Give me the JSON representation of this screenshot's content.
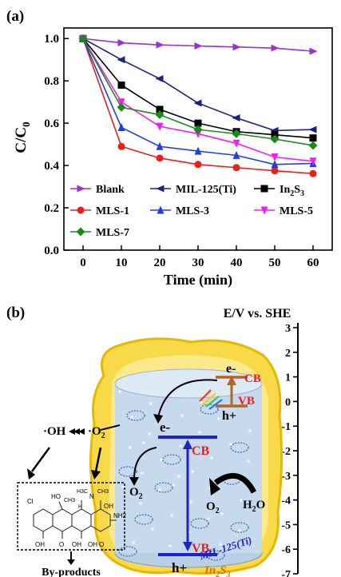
{
  "chart_data": {
    "type": "line",
    "panel_label": "(a)",
    "xlabel": "Time (min)",
    "ylabel": "C/C0",
    "xlim": [
      -5,
      65
    ],
    "ylim": [
      0.0,
      1.05
    ],
    "xticks": [
      0,
      10,
      20,
      30,
      40,
      50,
      60
    ],
    "yticks": [
      0.0,
      0.2,
      0.4,
      0.6,
      0.8,
      1.0
    ],
    "x": [
      0,
      10,
      20,
      30,
      40,
      50,
      60
    ],
    "legend_position": "bottom-inside",
    "series": [
      {
        "name": "Blank",
        "color": "#9b2fd3",
        "marker": "triangle-right",
        "values": [
          1.0,
          0.98,
          0.97,
          0.965,
          0.96,
          0.955,
          0.94
        ]
      },
      {
        "name": "MIL-125(Ti)",
        "color": "#1a237e",
        "marker": "triangle-left",
        "values": [
          1.0,
          0.9,
          0.81,
          0.695,
          0.625,
          0.565,
          0.57
        ]
      },
      {
        "name": "In2S3",
        "color": "#000000",
        "marker": "square",
        "values": [
          1.0,
          0.78,
          0.665,
          0.6,
          0.56,
          0.545,
          0.53
        ]
      },
      {
        "name": "MLS-1",
        "color": "#e8201a",
        "marker": "circle",
        "values": [
          1.0,
          0.49,
          0.435,
          0.405,
          0.39,
          0.375,
          0.362
        ]
      },
      {
        "name": "MLS-3",
        "color": "#1f3fe0",
        "marker": "triangle-up",
        "values": [
          1.0,
          0.58,
          0.49,
          0.468,
          0.448,
          0.405,
          0.41
        ]
      },
      {
        "name": "MLS-5",
        "color": "#f01ff0",
        "marker": "triangle-down",
        "values": [
          1.0,
          0.7,
          0.585,
          0.55,
          0.505,
          0.44,
          0.42
        ]
      },
      {
        "name": "MLS-7",
        "color": "#1a8a1a",
        "marker": "diamond",
        "values": [
          1.0,
          0.675,
          0.64,
          0.57,
          0.55,
          0.525,
          0.495
        ]
      }
    ]
  },
  "panel_b": {
    "label": "(b)",
    "axis_title": "E/V vs. SHE",
    "ticks": [
      3,
      2,
      1,
      0,
      -1,
      -2,
      -3,
      -4,
      -5,
      -6,
      -7
    ],
    "in2s3": {
      "cb": "CB",
      "vb": "VB",
      "electron": "e-",
      "hole": "h+",
      "name": "In2S3",
      "cb_level": 1.2,
      "vb_level": -0.8
    },
    "mil": {
      "cb": "CB",
      "vb": "VB",
      "electron": "e-",
      "hole": "h+",
      "name": "MIL-125(Ti)",
      "cb_level": -0.9,
      "vb_level": -5.0
    },
    "species": {
      "o2_left": "O2",
      "o2_mid": "O2",
      "o2_top": "O2",
      "h2o": "H2O",
      "oh": "·OH"
    },
    "byproducts": "By-products",
    "molecule_labels": {
      "cl": "Cl",
      "ho": "HO",
      "ch3": "CH3",
      "h": "H",
      "nh3c": "H3C",
      "n": "N",
      "ch3b": "CH3",
      "oh1": "OH",
      "oh2": "OH",
      "o1": "O",
      "o2": "O",
      "oh3": "OH",
      "nh2": "NH2",
      "oh4": "OH"
    }
  }
}
